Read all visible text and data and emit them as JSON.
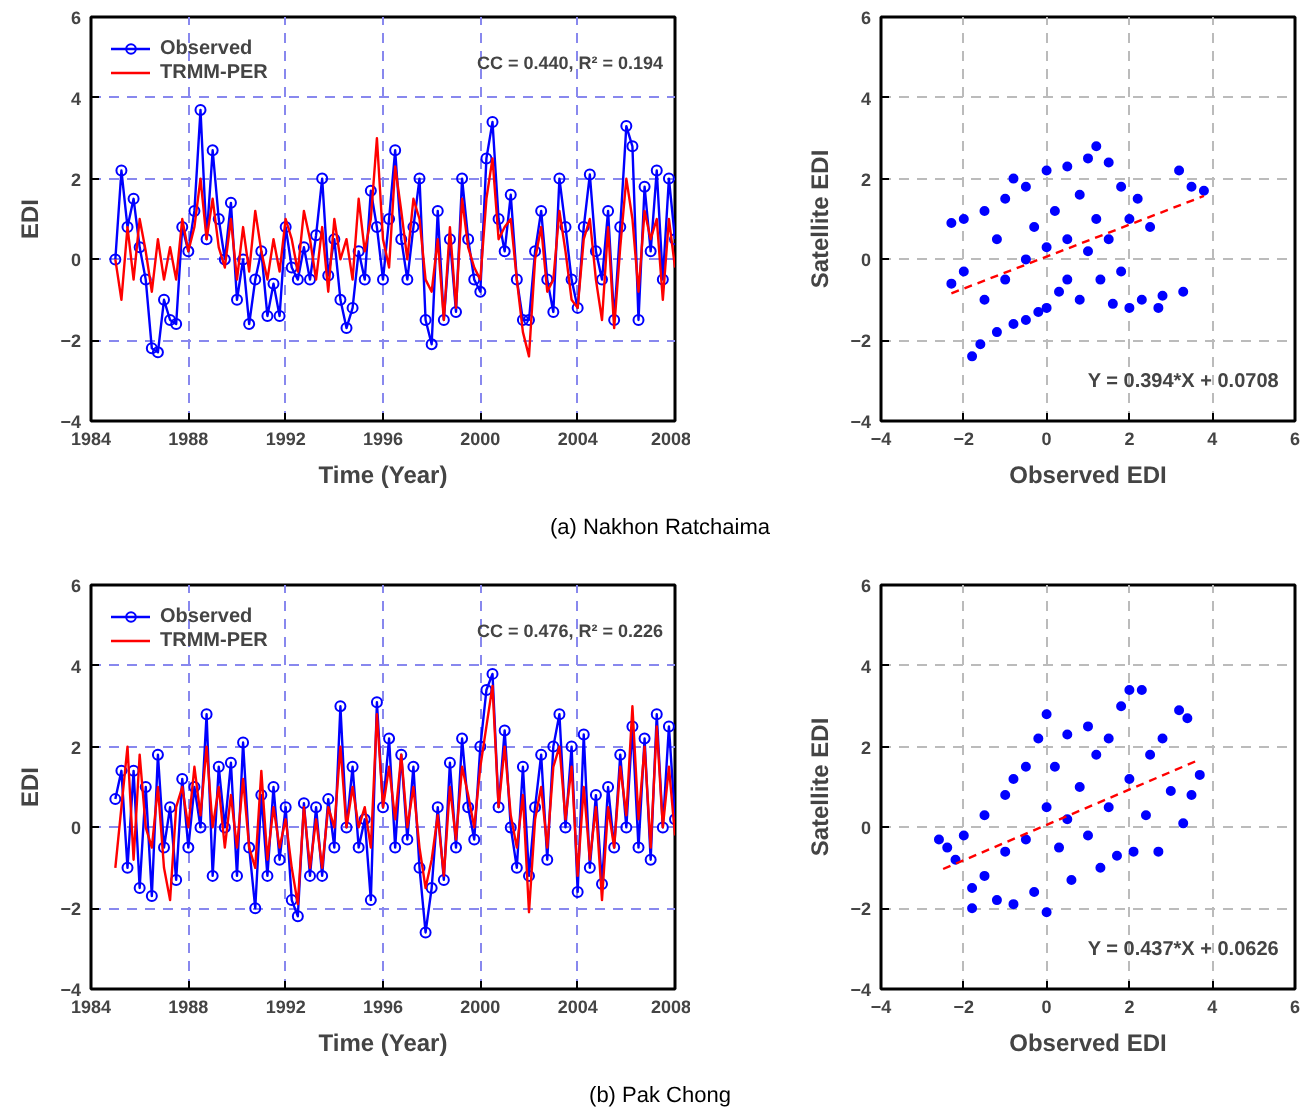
{
  "chart_data": [
    {
      "type": "line",
      "xlabel": "Time (Year)",
      "ylabel": "EDI",
      "xlim": [
        1984,
        2008
      ],
      "xticks": [
        1984,
        1988,
        1992,
        1996,
        2000,
        2004,
        2008
      ],
      "ylim": [
        -4,
        6
      ],
      "yticks": [
        -4,
        -2,
        0,
        2,
        4,
        6
      ],
      "grid": true,
      "legend": "top left",
      "annotations": [
        "CC = 0.440, R² = 0.194",
        "(a)  Nakhon  Ratchaima"
      ],
      "x": [
        1985,
        1985.25,
        1985.5,
        1985.75,
        1986,
        1986.25,
        1986.5,
        1986.75,
        1987,
        1987.25,
        1987.5,
        1987.75,
        1988,
        1988.25,
        1988.5,
        1988.75,
        1989,
        1989.25,
        1989.5,
        1989.75,
        1990,
        1990.25,
        1990.5,
        1990.75,
        1991,
        1991.25,
        1991.5,
        1991.75,
        1992,
        1992.25,
        1992.5,
        1992.75,
        1993,
        1993.25,
        1993.5,
        1993.75,
        1994,
        1994.25,
        1994.5,
        1994.75,
        1995,
        1995.25,
        1995.5,
        1995.75,
        1996,
        1996.25,
        1996.5,
        1996.75,
        1997,
        1997.25,
        1997.5,
        1997.75,
        1998,
        1998.25,
        1998.5,
        1998.75,
        1999,
        1999.25,
        1999.5,
        1999.75,
        2000,
        2000.25,
        2000.5,
        2000.75,
        2001,
        2001.25,
        2001.5,
        2001.75,
        2002,
        2002.25,
        2002.5,
        2002.75,
        2003,
        2003.25,
        2003.5,
        2003.75,
        2004,
        2004.25,
        2004.5,
        2004.75,
        2005,
        2005.25,
        2005.5,
        2005.75,
        2006,
        2006.25,
        2006.5,
        2006.75,
        2007,
        2007.25,
        2007.5,
        2007.75,
        2008
      ],
      "series": [
        {
          "name": "Observed",
          "color": "#0000ff",
          "marker": "circle",
          "values": [
            0,
            2.2,
            0.8,
            1.5,
            0.3,
            -0.5,
            -2.2,
            -2.3,
            -1.0,
            -1.5,
            -1.6,
            0.8,
            0.2,
            1.2,
            3.7,
            0.5,
            2.7,
            1.0,
            0.0,
            1.4,
            -1.0,
            0.0,
            -1.6,
            -0.5,
            0.2,
            -1.4,
            -0.6,
            -1.4,
            0.8,
            -0.2,
            -0.5,
            0.3,
            -0.5,
            0.6,
            2.0,
            -0.4,
            0.5,
            -1.0,
            -1.7,
            -1.2,
            0.2,
            -0.5,
            1.7,
            0.8,
            -0.5,
            1.0,
            2.7,
            0.5,
            -0.5,
            0.8,
            2.0,
            -1.5,
            -2.1,
            1.2,
            -1.5,
            0.5,
            -1.3,
            2.0,
            0.5,
            -0.5,
            -0.8,
            2.5,
            3.4,
            1.0,
            0.2,
            1.6,
            -0.5,
            -1.5,
            -1.5,
            0.2,
            1.2,
            -0.5,
            -1.3,
            2.0,
            0.8,
            -0.5,
            -1.2,
            0.8,
            2.1,
            0.2,
            -0.5,
            1.2,
            -1.5,
            0.8,
            3.3,
            2.8,
            -1.5,
            1.8,
            0.2,
            2.2,
            -0.5,
            2.0,
            0.5
          ]
        },
        {
          "name": "TRMM-PER",
          "color": "#ff0000",
          "marker": "none",
          "values": [
            0,
            -1.0,
            0.8,
            -0.5,
            1.0,
            0.2,
            -0.8,
            0.5,
            -0.5,
            0.3,
            -0.5,
            1.0,
            0.2,
            0.8,
            2.0,
            0.5,
            1.5,
            0.3,
            -0.2,
            1.0,
            -0.5,
            0.8,
            -0.3,
            1.2,
            0.2,
            -0.5,
            0.5,
            -0.3,
            1.0,
            0.5,
            -0.3,
            1.2,
            0.5,
            -0.5,
            0.8,
            -0.8,
            1.0,
            0.0,
            0.5,
            -0.5,
            1.5,
            0.2,
            1.0,
            3.0,
            0.5,
            -0.2,
            2.3,
            1.2,
            0.0,
            1.5,
            1.0,
            -0.5,
            -0.8,
            0.5,
            -1.5,
            0.8,
            -1.2,
            1.5,
            0.3,
            -0.2,
            -0.5,
            1.5,
            2.5,
            0.5,
            0.8,
            1.0,
            -0.5,
            -1.8,
            -2.4,
            0.0,
            0.8,
            -0.8,
            -0.5,
            1.2,
            0.2,
            -1.0,
            -1.2,
            0.5,
            1.0,
            -0.5,
            -1.5,
            0.8,
            -1.7,
            0.3,
            2.0,
            1.0,
            -0.8,
            1.2,
            0.5,
            1.0,
            -1.0,
            1.0,
            -0.2
          ]
        }
      ]
    },
    {
      "type": "scatter",
      "xlabel": "Observed EDI",
      "ylabel": "Satellite EDI",
      "xlim": [
        -4,
        6
      ],
      "xticks": [
        -4,
        -2,
        0,
        2,
        4,
        6
      ],
      "ylim": [
        -4,
        6
      ],
      "yticks": [
        -4,
        -2,
        0,
        2,
        4,
        6
      ],
      "grid": true,
      "annotations": [
        "Y = 0.394*X + 0.0708"
      ],
      "series": [
        {
          "type": "scatter",
          "color": "#0000ff",
          "marker": "circle",
          "x": [
            -2.3,
            -2.3,
            -2.0,
            -2.0,
            -1.8,
            -1.6,
            -1.5,
            -1.5,
            -1.2,
            -1.2,
            -1.0,
            -1.0,
            -0.8,
            -0.8,
            -0.5,
            -0.5,
            -0.5,
            -0.3,
            -0.2,
            0,
            0,
            0,
            0.2,
            0.3,
            0.5,
            0.5,
            0.5,
            0.8,
            0.8,
            1.0,
            1.0,
            1.2,
            1.2,
            1.3,
            1.5,
            1.5,
            1.6,
            1.8,
            1.8,
            2.0,
            2.0,
            2.2,
            2.3,
            2.5,
            2.7,
            2.8,
            3.2,
            3.3,
            3.5,
            3.8
          ],
          "values": [
            0.9,
            -0.6,
            1.0,
            -0.3,
            -2.4,
            -2.1,
            1.2,
            -1.0,
            0.5,
            -1.8,
            1.5,
            -0.5,
            2.0,
            -1.6,
            1.8,
            0.0,
            -1.5,
            0.8,
            -1.3,
            2.2,
            0.3,
            -1.2,
            1.2,
            -0.8,
            2.3,
            0.5,
            -0.5,
            1.6,
            -1.0,
            2.5,
            0.2,
            2.8,
            1.0,
            -0.5,
            2.4,
            0.5,
            -1.1,
            1.8,
            -0.3,
            1.0,
            -1.2,
            1.5,
            -1.0,
            0.8,
            -1.2,
            -0.9,
            2.2,
            -0.8,
            1.8,
            1.7
          ]
        },
        {
          "type": "line",
          "color": "#ff0000",
          "line_style": "dashed",
          "x": [
            -2.3,
            3.8
          ],
          "values": [
            -0.84,
            1.57
          ]
        }
      ]
    },
    {
      "type": "line",
      "xlabel": "Time (Year)",
      "ylabel": "EDI",
      "xlim": [
        1984,
        2008
      ],
      "xticks": [
        1984,
        1988,
        1992,
        1996,
        2000,
        2004,
        2008
      ],
      "ylim": [
        -4,
        6
      ],
      "yticks": [
        -4,
        -2,
        0,
        2,
        4,
        6
      ],
      "grid": true,
      "legend": "top left",
      "annotations": [
        "CC = 0.476, R² = 0.226",
        "(b)  Pak  Chong"
      ],
      "x": [
        1985,
        1985.25,
        1985.5,
        1985.75,
        1986,
        1986.25,
        1986.5,
        1986.75,
        1987,
        1987.25,
        1987.5,
        1987.75,
        1988,
        1988.25,
        1988.5,
        1988.75,
        1989,
        1989.25,
        1989.5,
        1989.75,
        1990,
        1990.25,
        1990.5,
        1990.75,
        1991,
        1991.25,
        1991.5,
        1991.75,
        1992,
        1992.25,
        1992.5,
        1992.75,
        1993,
        1993.25,
        1993.5,
        1993.75,
        1994,
        1994.25,
        1994.5,
        1994.75,
        1995,
        1995.25,
        1995.5,
        1995.75,
        1996,
        1996.25,
        1996.5,
        1996.75,
        1997,
        1997.25,
        1997.5,
        1997.75,
        1998,
        1998.25,
        1998.5,
        1998.75,
        1999,
        1999.25,
        1999.5,
        1999.75,
        2000,
        2000.25,
        2000.5,
        2000.75,
        2001,
        2001.25,
        2001.5,
        2001.75,
        2002,
        2002.25,
        2002.5,
        2002.75,
        2003,
        2003.25,
        2003.5,
        2003.75,
        2004,
        2004.25,
        2004.5,
        2004.75,
        2005,
        2005.25,
        2005.5,
        2005.75,
        2006,
        2006.25,
        2006.5,
        2006.75,
        2007,
        2007.25,
        2007.5,
        2007.75,
        2008
      ],
      "series": [
        {
          "name": "Observed",
          "color": "#0000ff",
          "marker": "circle",
          "values": [
            0.7,
            1.4,
            -1.0,
            1.4,
            -1.5,
            1.0,
            -1.7,
            1.8,
            -0.5,
            0.5,
            -1.3,
            1.2,
            -0.5,
            1.0,
            0.0,
            2.8,
            -1.2,
            1.5,
            0.0,
            1.6,
            -1.2,
            2.1,
            -0.5,
            -2.0,
            0.8,
            -1.2,
            1.0,
            -0.8,
            0.5,
            -1.8,
            -2.2,
            0.6,
            -1.2,
            0.5,
            -1.2,
            0.7,
            -0.5,
            3.0,
            0.0,
            1.5,
            -0.5,
            0.2,
            -1.8,
            3.1,
            0.5,
            2.2,
            -0.5,
            1.8,
            -0.3,
            1.5,
            -1.0,
            -2.6,
            -1.5,
            0.5,
            -1.3,
            1.6,
            -0.5,
            2.2,
            0.5,
            -0.3,
            2.0,
            3.4,
            3.8,
            0.5,
            2.4,
            0.0,
            -1.0,
            1.5,
            -1.2,
            0.5,
            1.8,
            -0.8,
            2.0,
            2.8,
            0.0,
            2.0,
            -1.6,
            2.3,
            -1.0,
            0.8,
            -1.4,
            1.0,
            -0.5,
            1.8,
            0.0,
            2.5,
            -0.5,
            2.2,
            -0.8,
            2.8,
            0.0,
            2.5,
            0.2
          ]
        },
        {
          "name": "TRMM-PER",
          "color": "#ff0000",
          "marker": "none",
          "values": [
            -1.0,
            0.5,
            2.0,
            -0.8,
            1.8,
            0.0,
            -0.5,
            1.0,
            -1.0,
            -1.8,
            0.5,
            1.0,
            0.0,
            1.5,
            0.3,
            2.0,
            0.0,
            1.0,
            -0.5,
            0.8,
            -0.5,
            1.2,
            -0.5,
            -1.0,
            1.4,
            -0.8,
            0.5,
            -0.5,
            0.2,
            -1.0,
            -1.9,
            0.5,
            -1.0,
            0.2,
            -1.0,
            0.5,
            0.0,
            2.0,
            0.0,
            1.0,
            0.0,
            0.5,
            -0.5,
            2.8,
            0.5,
            1.5,
            0.2,
            1.8,
            0.0,
            1.0,
            -0.5,
            -1.5,
            -0.8,
            0.3,
            -1.2,
            1.0,
            -0.3,
            1.5,
            0.8,
            0.0,
            1.5,
            2.5,
            3.5,
            0.5,
            2.0,
            0.3,
            -0.5,
            0.8,
            -2.1,
            0.2,
            1.0,
            -0.5,
            1.5,
            2.0,
            0.2,
            1.5,
            -1.2,
            1.0,
            -0.8,
            0.5,
            -1.8,
            0.5,
            -0.5,
            1.5,
            0.3,
            3.0,
            0.2,
            2.0,
            -0.5,
            2.5,
            0.0,
            1.5,
            -0.2
          ]
        }
      ]
    },
    {
      "type": "scatter",
      "xlabel": "Observed EDI",
      "ylabel": "Satellite EDI",
      "xlim": [
        -4,
        6
      ],
      "xticks": [
        -4,
        -2,
        0,
        2,
        4,
        6
      ],
      "ylim": [
        -4,
        6
      ],
      "yticks": [
        -4,
        -2,
        0,
        2,
        4,
        6
      ],
      "grid": true,
      "annotations": [
        "Y = 0.437*X + 0.0626"
      ],
      "series": [
        {
          "type": "scatter",
          "color": "#0000ff",
          "marker": "circle",
          "x": [
            -2.6,
            -2.4,
            -2.2,
            -2.0,
            -1.8,
            -1.8,
            -1.5,
            -1.5,
            -1.2,
            -1.0,
            -1.0,
            -0.8,
            -0.8,
            -0.5,
            -0.5,
            -0.3,
            -0.2,
            0,
            0,
            0,
            0.2,
            0.3,
            0.5,
            0.5,
            0.6,
            0.8,
            1.0,
            1.0,
            1.2,
            1.3,
            1.5,
            1.5,
            1.7,
            1.8,
            2.0,
            2.0,
            2.1,
            2.3,
            2.4,
            2.5,
            2.7,
            2.8,
            3.0,
            3.2,
            3.3,
            3.4,
            3.5,
            3.7
          ],
          "values": [
            -0.3,
            -0.5,
            -0.8,
            -0.2,
            -1.5,
            -2.0,
            0.3,
            -1.2,
            -1.8,
            0.8,
            -0.6,
            1.2,
            -1.9,
            1.5,
            -0.3,
            -1.6,
            2.2,
            2.8,
            0.5,
            -2.1,
            1.5,
            -0.5,
            2.3,
            0.2,
            -1.3,
            1.0,
            2.5,
            -0.2,
            1.8,
            -1.0,
            0.5,
            2.2,
            -0.7,
            3.0,
            3.4,
            1.2,
            -0.6,
            3.4,
            0.3,
            1.8,
            -0.6,
            2.2,
            0.9,
            2.9,
            0.1,
            2.7,
            0.8,
            1.3
          ]
        },
        {
          "type": "line",
          "color": "#ff0000",
          "line_style": "dashed",
          "x": [
            -2.5,
            3.7
          ],
          "values": [
            -1.03,
            1.68
          ]
        }
      ]
    }
  ]
}
